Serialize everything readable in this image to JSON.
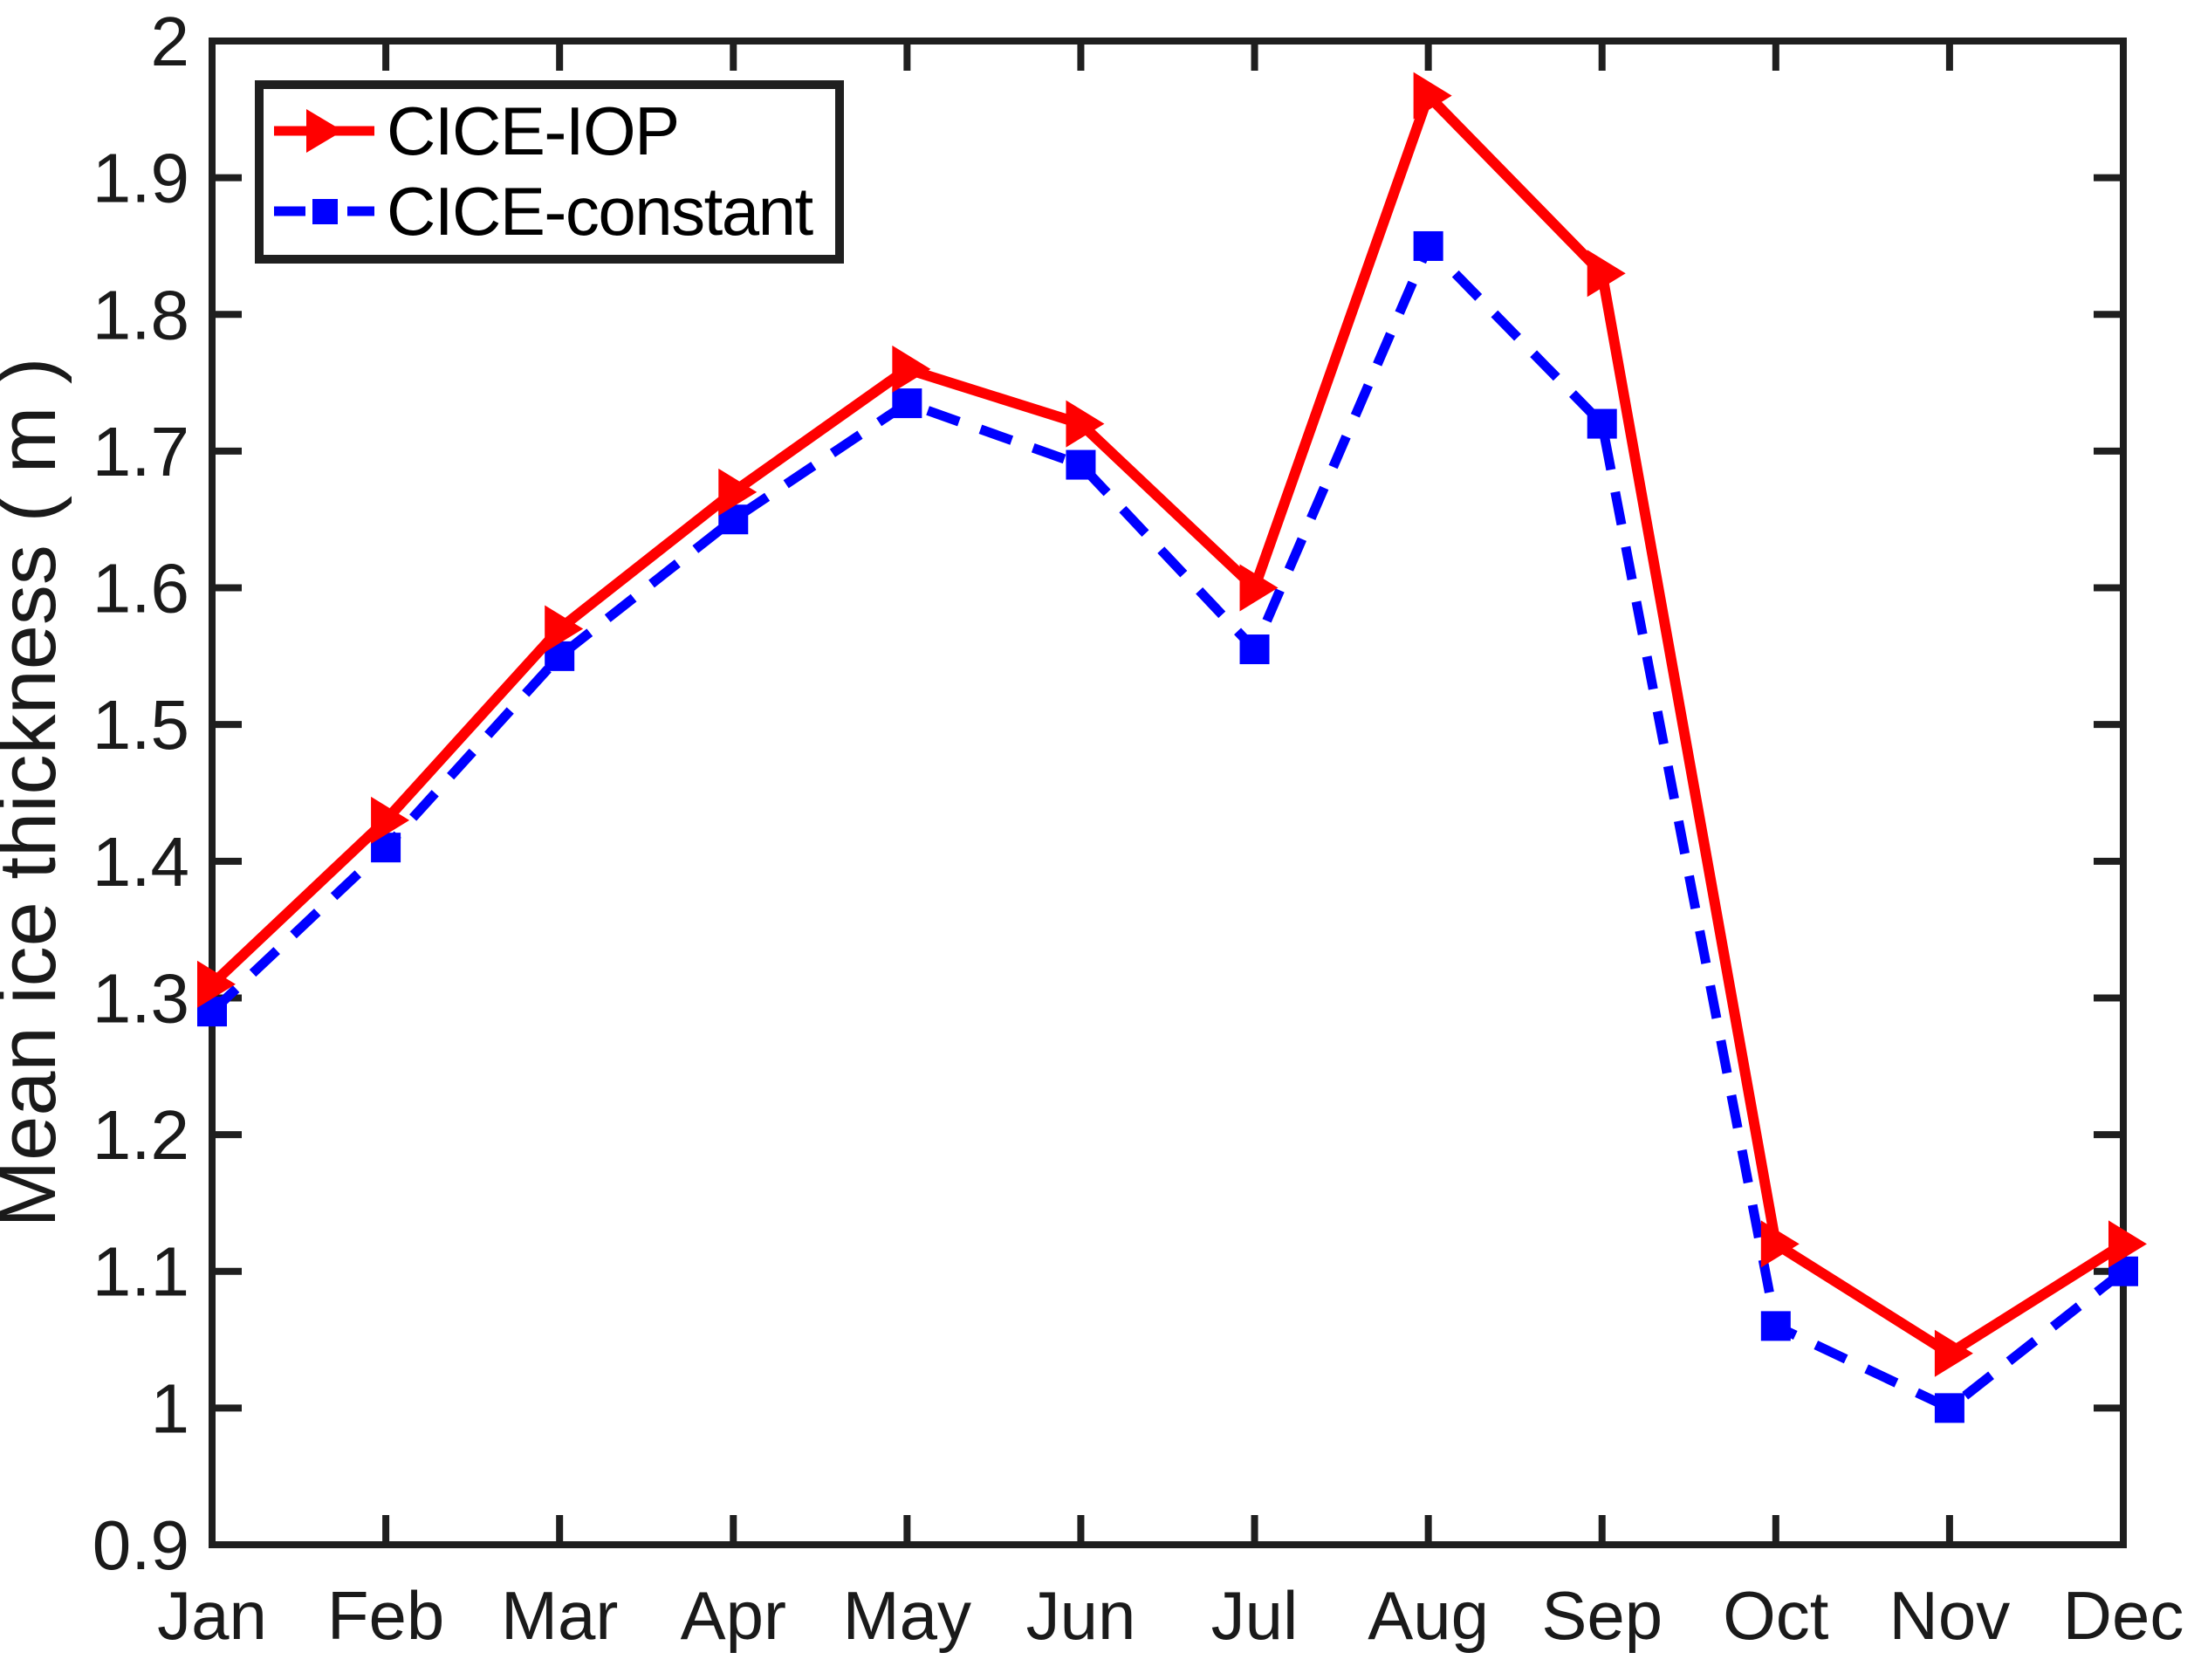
{
  "chart_data": {
    "type": "line",
    "title": "",
    "xlabel": "",
    "ylabel": "Mean ice thickness ( m )",
    "categories": [
      "Jan",
      "Feb",
      "Mar",
      "Apr",
      "May",
      "Jun",
      "Jul",
      "Aug",
      "Sep",
      "Oct",
      "Nov",
      "Dec"
    ],
    "series": [
      {
        "name": "CICE-IOP",
        "color": "#ff0000",
        "line_style": "solid",
        "marker": "triangle-right",
        "values": [
          1.31,
          1.43,
          1.57,
          1.67,
          1.76,
          1.72,
          1.6,
          1.96,
          1.83,
          1.12,
          1.04,
          1.12
        ]
      },
      {
        "name": "CICE-constant",
        "color": "#0000ff",
        "line_style": "dashed",
        "marker": "square",
        "values": [
          1.29,
          1.41,
          1.55,
          1.65,
          1.735,
          1.69,
          1.555,
          1.85,
          1.72,
          1.06,
          1.0,
          1.1
        ]
      }
    ],
    "ylim": [
      0.9,
      2.0
    ],
    "ytick_step": 0.1,
    "ytick_labels": [
      "2",
      "1.9",
      "1.8",
      "1.7",
      "1.6",
      "1.5",
      "1.4",
      "1.3",
      "1.2",
      "1.1",
      "1",
      "0.9"
    ],
    "grid": false,
    "legend_position": "upper-left",
    "axis_color": "#1f1f1f",
    "background": "#ffffff"
  }
}
